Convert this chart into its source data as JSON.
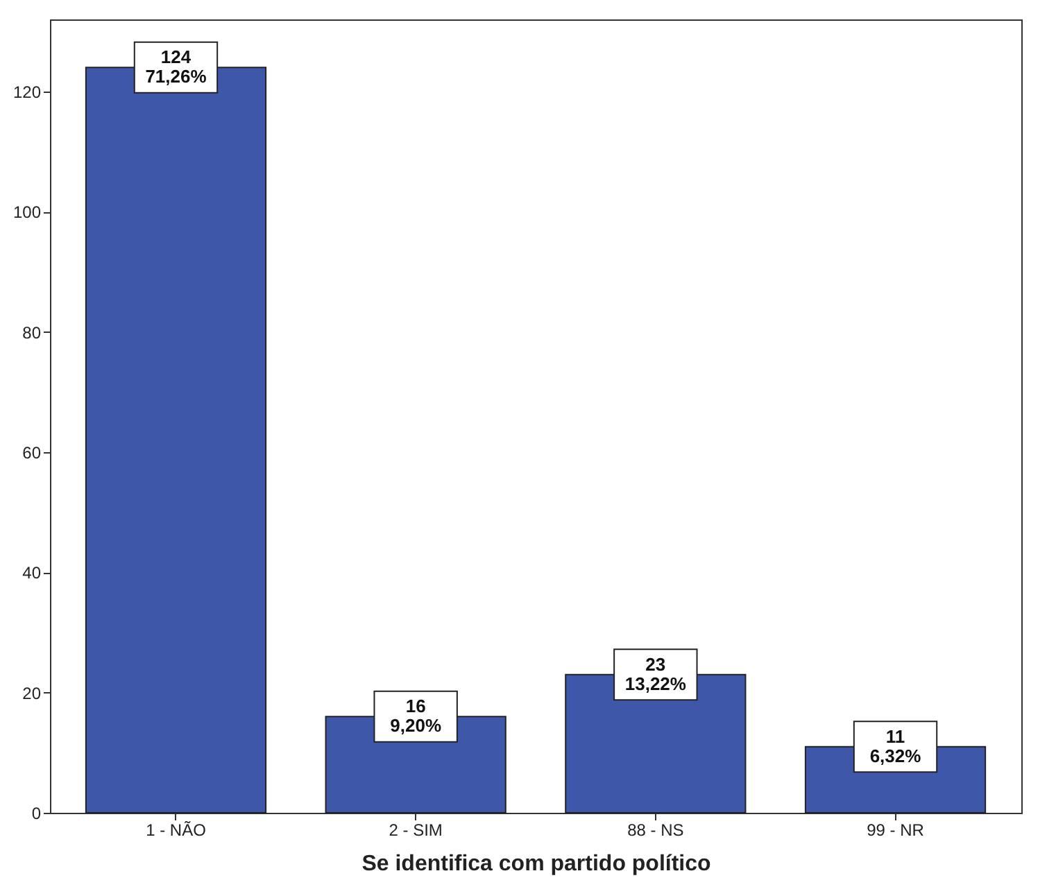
{
  "chart_data": {
    "type": "bar",
    "xlabel": "Se identifica com partido político",
    "categories": [
      "1 - NÃO",
      "2 - SIM",
      "88 - NS",
      "99 - NR"
    ],
    "values": [
      124,
      16,
      23,
      11
    ],
    "value_labels": [
      "124\n71,26%",
      "16\n9,20%",
      "23\n13,22%",
      "11\n6,32%"
    ],
    "color": "#3f57a8",
    "ylim": [
      0,
      132
    ],
    "yticks": [
      0,
      20,
      40,
      60,
      80,
      100,
      120
    ],
    "grid": false
  }
}
